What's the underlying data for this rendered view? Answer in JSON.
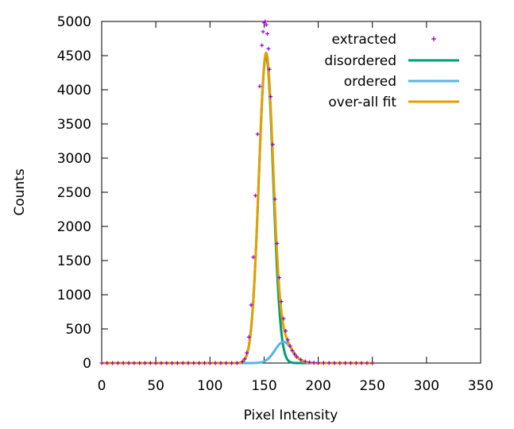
{
  "chart_data": {
    "type": "scatter",
    "xlabel": "Pixel Intensity",
    "ylabel": "Counts",
    "xlim": [
      0,
      350
    ],
    "ylim": [
      0,
      5000
    ],
    "xticks": [
      "0",
      "50",
      "100",
      "150",
      "200",
      "250",
      "300",
      "350"
    ],
    "yticks": [
      "0",
      "500",
      "1000",
      "1500",
      "2000",
      "2500",
      "3000",
      "3500",
      "4000",
      "4500",
      "5000"
    ],
    "grid": false,
    "legend_position": "top-right",
    "legend": [
      "extracted",
      "disordered",
      "ordered",
      "over-all fit"
    ],
    "series": [
      {
        "name": "extracted",
        "style": "points",
        "color": "#9400d3",
        "x": [
          0,
          5,
          10,
          15,
          20,
          25,
          30,
          35,
          40,
          45,
          50,
          55,
          60,
          65,
          70,
          75,
          80,
          85,
          90,
          95,
          100,
          105,
          110,
          115,
          120,
          125,
          130,
          132,
          134,
          136,
          138,
          140,
          142,
          144,
          146,
          148,
          149,
          150,
          151,
          152,
          153,
          154,
          155,
          156,
          158,
          160,
          162,
          164,
          166,
          168,
          170,
          172,
          174,
          176,
          178,
          180,
          184,
          188,
          192,
          196,
          200,
          205,
          210,
          215,
          220,
          225,
          230,
          235,
          240,
          245,
          250
        ],
        "y": [
          0,
          0,
          0,
          0,
          0,
          0,
          0,
          0,
          0,
          0,
          0,
          0,
          0,
          0,
          0,
          0,
          0,
          0,
          0,
          0,
          0,
          0,
          0,
          0,
          0,
          0,
          20,
          60,
          150,
          380,
          850,
          1550,
          2450,
          3350,
          4050,
          4650,
          4850,
          4980,
          5000,
          4950,
          4820,
          4600,
          4300,
          3900,
          3200,
          2400,
          1750,
          1250,
          900,
          650,
          470,
          340,
          250,
          180,
          130,
          90,
          50,
          25,
          12,
          6,
          3,
          2,
          1,
          0,
          0,
          0,
          0,
          0,
          0,
          0,
          0
        ]
      },
      {
        "name": "disordered",
        "style": "line",
        "color": "#009e73",
        "mu": 151.8,
        "sigma": 6.6,
        "amplitude": 4500,
        "x_range": [
          0,
          252
        ]
      },
      {
        "name": "ordered",
        "style": "line",
        "color": "#56b4e9",
        "mu": 168,
        "sigma": 8,
        "amplitude": 310,
        "x_range": [
          0,
          252
        ]
      },
      {
        "name": "over-all fit",
        "style": "line",
        "color": "#e69f00",
        "components": [
          "disordered",
          "ordered"
        ],
        "x_range": [
          0,
          252
        ]
      }
    ]
  }
}
